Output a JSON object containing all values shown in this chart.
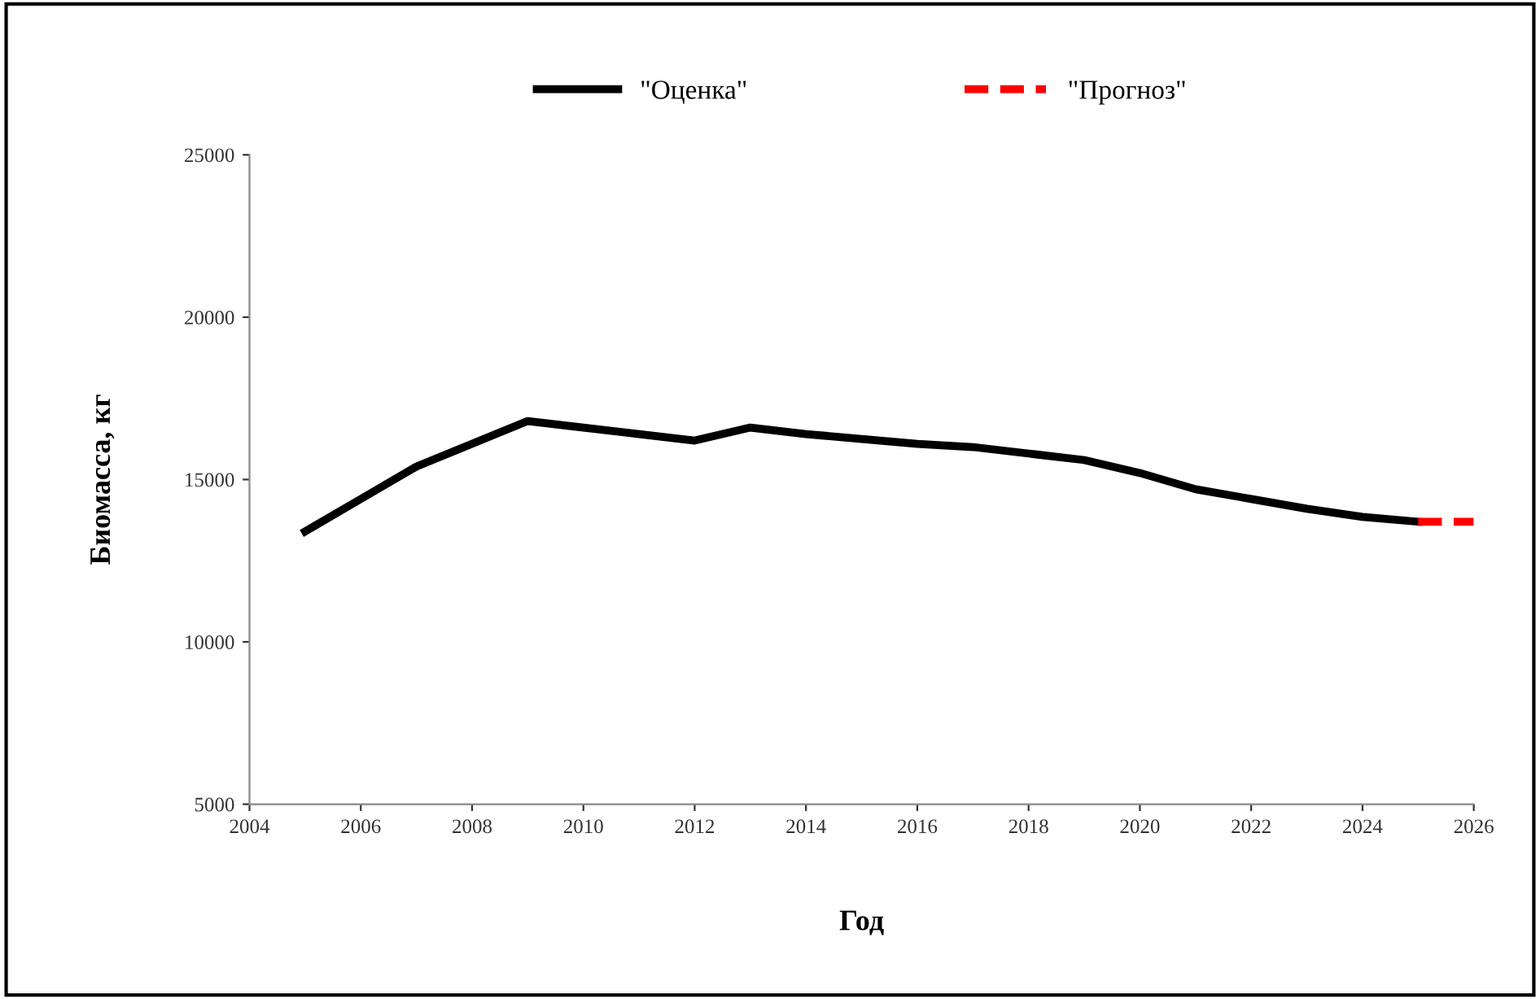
{
  "chart_data": {
    "type": "line",
    "xlabel": "Год",
    "ylabel": "Биомасса, кг",
    "series": [
      {
        "name": "\"Оценка\"",
        "color": "#000000",
        "line_style": "solid",
        "x": [
          2005,
          2006,
          2007,
          2008,
          2009,
          2010,
          2011,
          2012,
          2013,
          2014,
          2015,
          2016,
          2017,
          2018,
          2019,
          2020,
          2021,
          2022,
          2023,
          2024,
          2025
        ],
        "values": [
          13400,
          14400,
          15400,
          16100,
          16800,
          16600,
          16400,
          16200,
          16600,
          16400,
          16250,
          16100,
          16000,
          15800,
          15600,
          15200,
          14700,
          14400,
          14100,
          13850,
          13700
        ]
      },
      {
        "name": "\"Прогноз\"",
        "color": "#ff0000",
        "line_style": "dashed",
        "x": [
          2025,
          2026
        ],
        "values": [
          13700,
          13700
        ]
      }
    ],
    "xlim": [
      2004,
      2026
    ],
    "xticks": [
      2004,
      2006,
      2008,
      2010,
      2012,
      2014,
      2016,
      2018,
      2020,
      2022,
      2024,
      2026
    ],
    "ylim": [
      5000,
      25000
    ],
    "yticks": [
      5000,
      10000,
      15000,
      20000,
      25000
    ],
    "grid": false,
    "legend": "top",
    "marker": "none"
  }
}
